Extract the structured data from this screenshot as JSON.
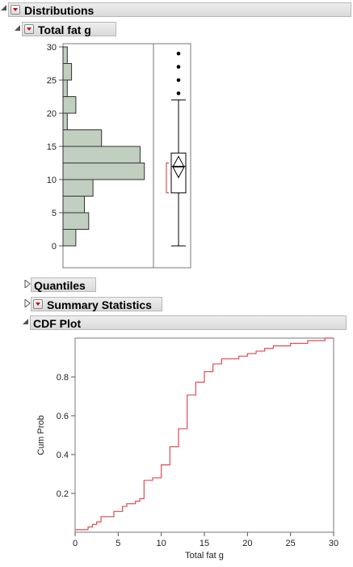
{
  "distributions": {
    "title": "Distributions",
    "outline_title": "Total fat g"
  },
  "histogram": {
    "y_ticks": [
      "30",
      "25",
      "20",
      "15",
      "10",
      "5",
      "0"
    ],
    "bin_width": 2.5,
    "bins": [
      {
        "from": 0,
        "to": 2.5,
        "count": 3
      },
      {
        "from": 2.5,
        "to": 5,
        "count": 6
      },
      {
        "from": 5,
        "to": 7.5,
        "count": 5
      },
      {
        "from": 7.5,
        "to": 10,
        "count": 7
      },
      {
        "from": 10,
        "to": 12.5,
        "count": 19
      },
      {
        "from": 12.5,
        "to": 15,
        "count": 18
      },
      {
        "from": 15,
        "to": 17.5,
        "count": 9
      },
      {
        "from": 17.5,
        "to": 20,
        "count": 1
      },
      {
        "from": 20,
        "to": 22.5,
        "count": 3
      },
      {
        "from": 22.5,
        "to": 25,
        "count": 1
      },
      {
        "from": 25,
        "to": 27.5,
        "count": 2
      },
      {
        "from": 27.5,
        "to": 30,
        "count": 1
      }
    ],
    "fill_color": "#c0cfc0"
  },
  "boxplot": {
    "whisker_low": 0,
    "q1": 8,
    "median": 12,
    "q3": 14,
    "whisker_high": 22,
    "mean": 11.9,
    "mean_ci": [
      10.3,
      13.5
    ],
    "shortest_half": [
      8,
      12.5
    ],
    "outliers": [
      23,
      25,
      27,
      29
    ]
  },
  "sections": {
    "quantiles": "Quantiles",
    "summary_statistics": "Summary Statistics",
    "cdf_plot": "CDF Plot"
  },
  "chart_data": {
    "type": "line",
    "step": true,
    "xlabel": "Total fat g",
    "ylabel": "Cum Prob",
    "xlim": [
      0,
      30
    ],
    "ylim": [
      0,
      1
    ],
    "x_ticks": [
      "0",
      "5",
      "10",
      "15",
      "20",
      "25",
      "30"
    ],
    "y_ticks": [
      "0.2",
      "0.4",
      "0.6",
      "0.8"
    ],
    "color": "#e04a5a",
    "points": [
      [
        0,
        0.013
      ],
      [
        1,
        0.013
      ],
      [
        1.5,
        0.027
      ],
      [
        2,
        0.04
      ],
      [
        2.5,
        0.053
      ],
      [
        3,
        0.08
      ],
      [
        4,
        0.08
      ],
      [
        4.5,
        0.107
      ],
      [
        5,
        0.107
      ],
      [
        5.5,
        0.133
      ],
      [
        6,
        0.147
      ],
      [
        7,
        0.16
      ],
      [
        7.5,
        0.173
      ],
      [
        8,
        0.267
      ],
      [
        9,
        0.28
      ],
      [
        10,
        0.347
      ],
      [
        11,
        0.44
      ],
      [
        12,
        0.533
      ],
      [
        13,
        0.707
      ],
      [
        14,
        0.773
      ],
      [
        15,
        0.827
      ],
      [
        16,
        0.867
      ],
      [
        17,
        0.893
      ],
      [
        18,
        0.893
      ],
      [
        19,
        0.907
      ],
      [
        20,
        0.92
      ],
      [
        21,
        0.933
      ],
      [
        22,
        0.947
      ],
      [
        23,
        0.96
      ],
      [
        25,
        0.973
      ],
      [
        27,
        0.987
      ],
      [
        29,
        1.0
      ],
      [
        30,
        1.0
      ]
    ]
  }
}
